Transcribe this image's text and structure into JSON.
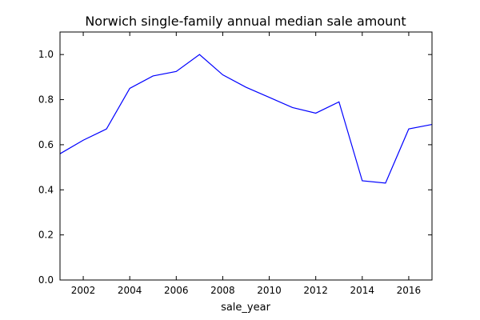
{
  "chart_data": {
    "type": "line",
    "title": "Norwich single-family annual median sale amount",
    "xlabel": "sale_year",
    "ylabel": "",
    "xlim": [
      2001,
      2017
    ],
    "ylim": [
      0.0,
      1.1
    ],
    "x_ticks": [
      2002,
      2004,
      2006,
      2008,
      2010,
      2012,
      2014,
      2016
    ],
    "y_ticks": [
      0.0,
      0.2,
      0.4,
      0.6,
      0.8,
      1.0
    ],
    "x_tick_labels": [
      "2002",
      "2004",
      "2006",
      "2008",
      "2010",
      "2012",
      "2014",
      "2016"
    ],
    "y_tick_labels": [
      "0.0",
      "0.2",
      "0.4",
      "0.6",
      "0.8",
      "1.0"
    ],
    "grid": false,
    "series_color": "#0000ff",
    "series": [
      {
        "x": [
          2001,
          2002,
          2003,
          2004,
          2005,
          2006,
          2007,
          2008,
          2009,
          2010,
          2011,
          2012,
          2013,
          2014,
          2015,
          2016,
          2017
        ],
        "values": [
          0.56,
          0.62,
          0.67,
          0.85,
          0.905,
          0.925,
          1.0,
          0.91,
          0.855,
          0.81,
          0.765,
          0.74,
          0.79,
          0.44,
          0.43,
          0.67,
          0.69
        ]
      }
    ]
  }
}
